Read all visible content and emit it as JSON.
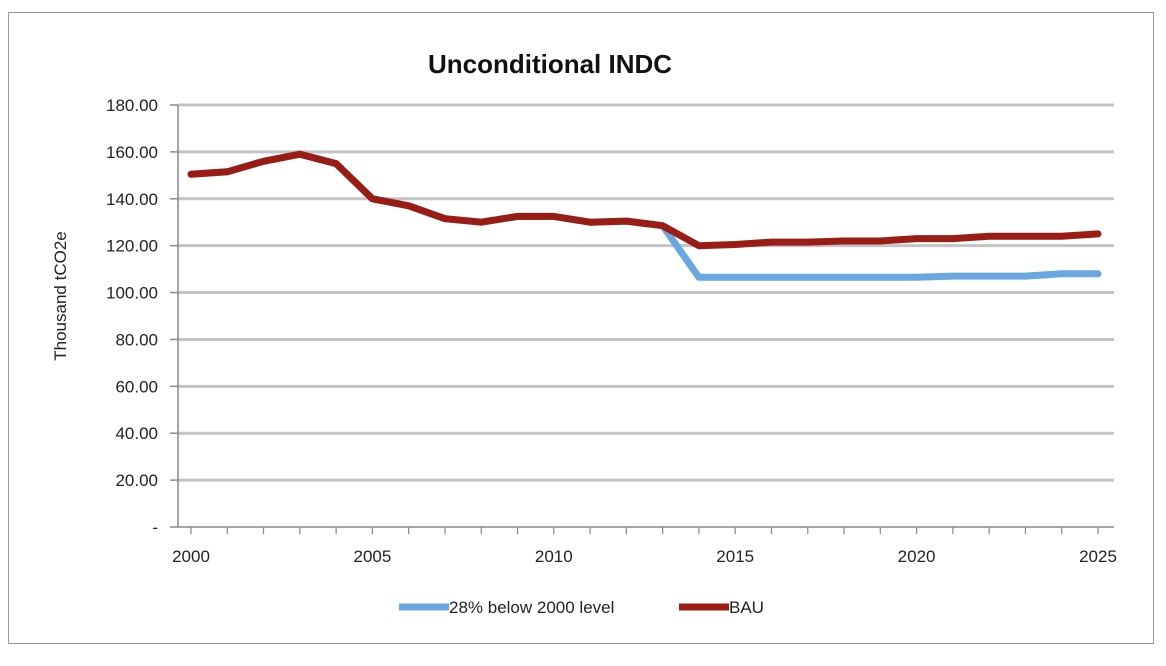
{
  "chart_data": {
    "type": "line",
    "title": "Unconditional INDC",
    "xlabel": "",
    "ylabel": "Thousand tCO2e",
    "xlim": [
      2000,
      2025
    ],
    "ylim": [
      0,
      180
    ],
    "x_ticks": [
      2000,
      2005,
      2010,
      2015,
      2020,
      2025
    ],
    "y_tick_values": [
      0,
      20,
      40,
      60,
      80,
      100,
      120,
      140,
      160,
      180
    ],
    "y_tick_labels": [
      "-",
      "20.00",
      "40.00",
      "60.00",
      "80.00",
      "100.00",
      "120.00",
      "140.00",
      "160.00",
      "180.00"
    ],
    "grid": true,
    "legend_position": "bottom",
    "x": [
      2000,
      2001,
      2002,
      2003,
      2004,
      2005,
      2006,
      2007,
      2008,
      2009,
      2010,
      2011,
      2012,
      2013,
      2014,
      2015,
      2016,
      2017,
      2018,
      2019,
      2020,
      2021,
      2022,
      2023,
      2024,
      2025
    ],
    "series": [
      {
        "name": "28% below 2000 level",
        "color": "#6aa6e0",
        "values": [
          150.5,
          151.5,
          156,
          159,
          155,
          140,
          137,
          131.5,
          130,
          132.5,
          132.5,
          130,
          130.5,
          128.5,
          106.5,
          106.5,
          106.5,
          106.5,
          106.5,
          106.5,
          106.5,
          107,
          107,
          107,
          108,
          108
        ]
      },
      {
        "name": "BAU",
        "color": "#9b1c15",
        "values": [
          150.5,
          151.5,
          156,
          159,
          155,
          140,
          137,
          131.5,
          130,
          132.5,
          132.5,
          130,
          130.5,
          128.5,
          120,
          120.5,
          121.5,
          121.5,
          122,
          122,
          123,
          123,
          124,
          124,
          124,
          125
        ]
      }
    ]
  }
}
